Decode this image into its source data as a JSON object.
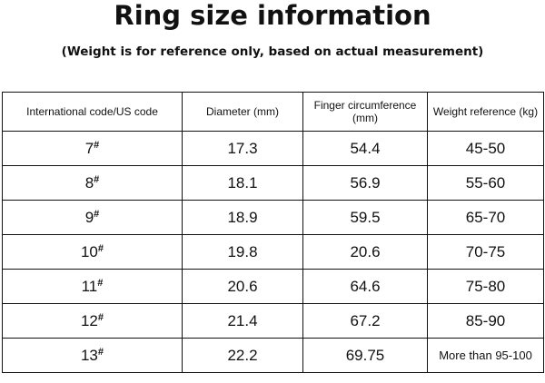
{
  "header": {
    "title": "Ring size information",
    "subtitle": "(Weight is for reference only, based on actual measurement)"
  },
  "table": {
    "columns": [
      "International code/US code",
      "Diameter (mm)",
      "Finger circumference (mm)",
      "Weight reference (kg)"
    ],
    "rows": [
      [
        "7#",
        "17.3",
        "54.4",
        "45-50"
      ],
      [
        "8#",
        "18.1",
        "56.9",
        "55-60"
      ],
      [
        "9#",
        "18.9",
        "59.5",
        "65-70"
      ],
      [
        "10#",
        "19.8",
        "20.6",
        "70-75"
      ],
      [
        "11#",
        "20.6",
        "64.6",
        "75-80"
      ],
      [
        "12#",
        "21.4",
        "67.2",
        "85-90"
      ],
      [
        "13#",
        "22.2",
        "69.75",
        "More than 95-100"
      ]
    ]
  }
}
